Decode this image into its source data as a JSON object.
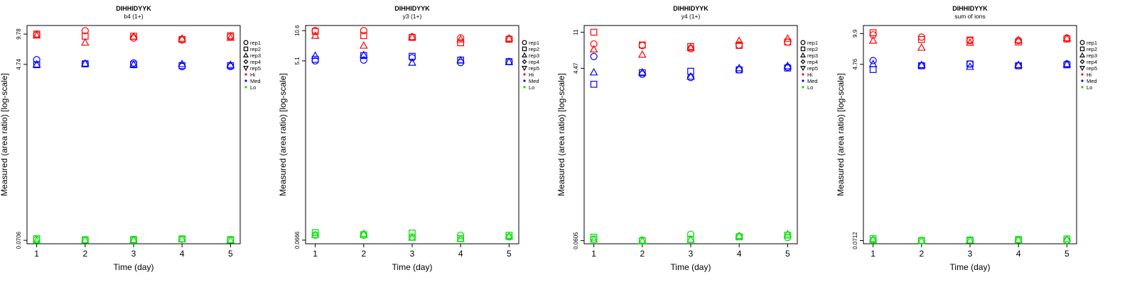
{
  "chart_data": [
    {
      "type": "scatter",
      "title": "DIHHIDYYK",
      "subtitle": "b4 (1+)",
      "xlabel": "Time (day)",
      "ylabel": "Measured (area ratio) [log-scale]",
      "log_y": true,
      "ylim": [
        0.065,
        12
      ],
      "yticks": [
        0.0706,
        4.74,
        9.78
      ],
      "ytick_labels": [
        "0.0706",
        "4.74",
        "9.78"
      ],
      "xlim": [
        0.8,
        5.2
      ],
      "xticks": [
        1,
        2,
        3,
        4,
        5
      ],
      "grid": false,
      "legend_position": "right",
      "legend": {
        "reps": [
          {
            "label": "rep1",
            "shape": "circle"
          },
          {
            "label": "rep2",
            "shape": "square"
          },
          {
            "label": "rep3",
            "shape": "triangle-up"
          },
          {
            "label": "rep4",
            "shape": "diamond"
          },
          {
            "label": "rep5",
            "shape": "triangle-down"
          }
        ],
        "levels": [
          {
            "label": "Hi",
            "color": "#ff0000"
          },
          {
            "label": "Med",
            "color": "#0000ff"
          },
          {
            "label": "Lo",
            "color": "#00dd00"
          }
        ]
      },
      "series": [
        {
          "level": "Hi",
          "rep": "rep1",
          "x": [
            1,
            2,
            3,
            4,
            5
          ],
          "y": [
            9.6,
            10.6,
            8.9,
            8.5,
            9.2
          ]
        },
        {
          "level": "Hi",
          "rep": "rep2",
          "x": [
            1,
            2,
            3,
            4,
            5
          ],
          "y": [
            9.8,
            9.3,
            9.3,
            8.6,
            9.4
          ]
        },
        {
          "level": "Hi",
          "rep": "rep3",
          "x": [
            1,
            2,
            3,
            4,
            5
          ],
          "y": [
            9.5,
            8.0,
            9.2,
            8.8,
            9.0
          ]
        },
        {
          "level": "Med",
          "rep": "rep1",
          "x": [
            1,
            2,
            3,
            4,
            5
          ],
          "y": [
            5.3,
            4.8,
            4.9,
            4.5,
            4.5
          ]
        },
        {
          "level": "Med",
          "rep": "rep2",
          "x": [
            1,
            2,
            3,
            4,
            5
          ],
          "y": [
            4.7,
            4.8,
            4.7,
            4.6,
            4.6
          ]
        },
        {
          "level": "Med",
          "rep": "rep3",
          "x": [
            1,
            2,
            3,
            4,
            5
          ],
          "y": [
            4.75,
            4.85,
            4.75,
            4.8,
            4.7
          ]
        },
        {
          "level": "Lo",
          "rep": "rep1",
          "x": [
            1,
            2,
            3,
            4,
            5
          ],
          "y": [
            0.0715,
            0.0712,
            0.0706,
            0.0725,
            0.0712
          ]
        },
        {
          "level": "Lo",
          "rep": "rep2",
          "x": [
            1,
            2,
            3,
            4,
            5
          ],
          "y": [
            0.0735,
            0.0716,
            0.0722,
            0.073,
            0.0718
          ]
        },
        {
          "level": "Lo",
          "rep": "rep3",
          "x": [
            1,
            2,
            3,
            4,
            5
          ],
          "y": [
            0.0704,
            0.0711,
            0.0713,
            0.0727,
            0.0709
          ]
        }
      ]
    },
    {
      "type": "scatter",
      "title": "DIHHIDYYK",
      "subtitle": "y3 (1+)",
      "xlabel": "Time (day)",
      "ylabel": "Measured (area ratio) [log-scale]",
      "log_y": true,
      "ylim": [
        0.061,
        12
      ],
      "yticks": [
        0.0666,
        5.1,
        10.6
      ],
      "ytick_labels": [
        "0.0666",
        "5.1",
        "10.6"
      ],
      "xlim": [
        0.8,
        5.2
      ],
      "xticks": [
        1,
        2,
        3,
        4,
        5
      ],
      "grid": false,
      "legend_position": "right",
      "legend": {
        "reps": [
          {
            "label": "rep1",
            "shape": "circle"
          },
          {
            "label": "rep2",
            "shape": "square"
          },
          {
            "label": "rep3",
            "shape": "triangle-up"
          },
          {
            "label": "rep4",
            "shape": "diamond"
          },
          {
            "label": "rep5",
            "shape": "triangle-down"
          }
        ],
        "levels": [
          {
            "label": "Hi",
            "color": "#ff0000"
          },
          {
            "label": "Med",
            "color": "#0000ff"
          },
          {
            "label": "Lo",
            "color": "#00dd00"
          }
        ]
      },
      "series": [
        {
          "level": "Hi",
          "rep": "rep1",
          "x": [
            1,
            2,
            3,
            4,
            5
          ],
          "y": [
            10.6,
            10.6,
            9.1,
            8.9,
            8.7
          ]
        },
        {
          "level": "Hi",
          "rep": "rep2",
          "x": [
            1,
            2,
            3,
            4,
            5
          ],
          "y": [
            10.4,
            9.4,
            9.0,
            7.9,
            8.6
          ]
        },
        {
          "level": "Hi",
          "rep": "rep3",
          "x": [
            1,
            2,
            3,
            4,
            5
          ],
          "y": [
            9.4,
            7.4,
            9.1,
            8.6,
            8.8
          ]
        },
        {
          "level": "Med",
          "rep": "rep1",
          "x": [
            1,
            2,
            3,
            4,
            5
          ],
          "y": [
            5.1,
            5.2,
            5.5,
            4.9,
            5.0
          ]
        },
        {
          "level": "Med",
          "rep": "rep2",
          "x": [
            1,
            2,
            3,
            4,
            5
          ],
          "y": [
            5.3,
            5.8,
            5.7,
            5.2,
            5.0
          ]
        },
        {
          "level": "Med",
          "rep": "rep3",
          "x": [
            1,
            2,
            3,
            4,
            5
          ],
          "y": [
            5.8,
            5.9,
            4.9,
            5.2,
            5.0
          ]
        },
        {
          "level": "Lo",
          "rep": "rep1",
          "x": [
            1,
            2,
            3,
            4,
            5
          ],
          "y": [
            0.075,
            0.075,
            0.072,
            0.075,
            0.072
          ]
        },
        {
          "level": "Lo",
          "rep": "rep2",
          "x": [
            1,
            2,
            3,
            4,
            5
          ],
          "y": [
            0.08,
            0.076,
            0.079,
            0.069,
            0.075
          ]
        },
        {
          "level": "Lo",
          "rep": "rep3",
          "x": [
            1,
            2,
            3,
            4,
            5
          ],
          "y": [
            0.076,
            0.078,
            0.071,
            0.069,
            0.073
          ]
        }
      ]
    },
    {
      "type": "scatter",
      "title": "DIHHIDYYK",
      "subtitle": "y4 (1+)",
      "xlabel": "Time (day)",
      "ylabel": "Measured (area ratio) [log-scale]",
      "log_y": true,
      "ylim": [
        0.056,
        13
      ],
      "yticks": [
        0.0605,
        4.47,
        11
      ],
      "ytick_labels": [
        "0.0605",
        "4.47",
        "11"
      ],
      "xlim": [
        0.8,
        5.2
      ],
      "xticks": [
        1,
        2,
        3,
        4,
        5
      ],
      "grid": false,
      "legend_position": "right",
      "legend": {
        "reps": [
          {
            "label": "rep1",
            "shape": "circle"
          },
          {
            "label": "rep2",
            "shape": "square"
          },
          {
            "label": "rep3",
            "shape": "triangle-up"
          },
          {
            "label": "rep4",
            "shape": "diamond"
          },
          {
            "label": "rep5",
            "shape": "triangle-down"
          }
        ],
        "levels": [
          {
            "label": "Hi",
            "color": "#ff0000"
          },
          {
            "label": "Med",
            "color": "#0000ff"
          },
          {
            "label": "Lo",
            "color": "#00dd00"
          }
        ]
      },
      "series": [
        {
          "level": "Hi",
          "rep": "rep1",
          "x": [
            1,
            2,
            3,
            4,
            5
          ],
          "y": [
            8.2,
            7.9,
            7.3,
            8.0,
            8.6
          ]
        },
        {
          "level": "Hi",
          "rep": "rep2",
          "x": [
            1,
            2,
            3,
            4,
            5
          ],
          "y": [
            11.0,
            8.0,
            7.7,
            7.9,
            8.6
          ]
        },
        {
          "level": "Hi",
          "rep": "rep3",
          "x": [
            1,
            2,
            3,
            4,
            5
          ],
          "y": [
            7.2,
            6.3,
            7.5,
            8.9,
            9.4
          ]
        },
        {
          "level": "Med",
          "rep": "rep1",
          "x": [
            1,
            2,
            3,
            4,
            5
          ],
          "y": [
            6.0,
            3.85,
            3.55,
            4.3,
            4.6
          ]
        },
        {
          "level": "Med",
          "rep": "rep2",
          "x": [
            1,
            2,
            3,
            4,
            5
          ],
          "y": [
            3.0,
            4.0,
            4.15,
            4.3,
            4.5
          ]
        },
        {
          "level": "Med",
          "rep": "rep3",
          "x": [
            1,
            2,
            3,
            4,
            5
          ],
          "y": [
            4.05,
            4.05,
            3.65,
            4.5,
            4.75
          ]
        },
        {
          "level": "Lo",
          "rep": "rep1",
          "x": [
            1,
            2,
            3,
            4,
            5
          ],
          "y": [
            0.063,
            0.0615,
            0.071,
            0.067,
            0.0655
          ]
        },
        {
          "level": "Lo",
          "rep": "rep2",
          "x": [
            1,
            2,
            3,
            4,
            5
          ],
          "y": [
            0.066,
            0.06,
            0.0625,
            0.0665,
            0.0695
          ]
        },
        {
          "level": "Lo",
          "rep": "rep3",
          "x": [
            1,
            2,
            3,
            4,
            5
          ],
          "y": [
            0.0625,
            0.0605,
            0.0625,
            0.0685,
            0.0715
          ]
        }
      ]
    },
    {
      "type": "scatter",
      "title": "DIHHIDYYK",
      "subtitle": "sum of ions",
      "xlabel": "Time (day)",
      "ylabel": "Measured (area ratio) [log-scale]",
      "log_y": true,
      "ylim": [
        0.066,
        12
      ],
      "yticks": [
        0.0712,
        4.76,
        9.9
      ],
      "ytick_labels": [
        "0.0712",
        "4.76",
        "9.9"
      ],
      "xlim": [
        0.8,
        5.2
      ],
      "xticks": [
        1,
        2,
        3,
        4,
        5
      ],
      "grid": false,
      "legend_position": "right",
      "legend": {
        "reps": [
          {
            "label": "rep1",
            "shape": "circle"
          },
          {
            "label": "rep2",
            "shape": "square"
          },
          {
            "label": "rep3",
            "shape": "triangle-up"
          },
          {
            "label": "rep4",
            "shape": "diamond"
          },
          {
            "label": "rep5",
            "shape": "triangle-down"
          }
        ],
        "levels": [
          {
            "label": "Hi",
            "color": "#ff0000"
          },
          {
            "label": "Med",
            "color": "#0000ff"
          },
          {
            "label": "Lo",
            "color": "#00dd00"
          }
        ]
      },
      "series": [
        {
          "level": "Hi",
          "rep": "rep1",
          "x": [
            1,
            2,
            3,
            4,
            5
          ],
          "y": [
            9.6,
            9.1,
            8.4,
            8.4,
            8.9
          ]
        },
        {
          "level": "Hi",
          "rep": "rep2",
          "x": [
            1,
            2,
            3,
            4,
            5
          ],
          "y": [
            10.1,
            8.6,
            8.5,
            8.1,
            8.7
          ]
        },
        {
          "level": "Hi",
          "rep": "rep3",
          "x": [
            1,
            2,
            3,
            4,
            5
          ],
          "y": [
            8.4,
            7.1,
            8.0,
            8.5,
            8.9
          ]
        },
        {
          "level": "Med",
          "rep": "rep1",
          "x": [
            1,
            2,
            3,
            4,
            5
          ],
          "y": [
            5.2,
            4.6,
            4.8,
            4.6,
            4.8
          ]
        },
        {
          "level": "Med",
          "rep": "rep2",
          "x": [
            1,
            2,
            3,
            4,
            5
          ],
          "y": [
            4.2,
            4.6,
            4.8,
            4.6,
            4.7
          ]
        },
        {
          "level": "Med",
          "rep": "rep3",
          "x": [
            1,
            2,
            3,
            4,
            5
          ],
          "y": [
            4.8,
            4.7,
            4.5,
            4.7,
            4.8
          ]
        },
        {
          "level": "Lo",
          "rep": "rep1",
          "x": [
            1,
            2,
            3,
            4,
            5
          ],
          "y": [
            0.0718,
            0.0712,
            0.0718,
            0.0722,
            0.0716
          ]
        },
        {
          "level": "Lo",
          "rep": "rep2",
          "x": [
            1,
            2,
            3,
            4,
            5
          ],
          "y": [
            0.0745,
            0.0712,
            0.0722,
            0.073,
            0.074
          ]
        },
        {
          "level": "Lo",
          "rep": "rep3",
          "x": [
            1,
            2,
            3,
            4,
            5
          ],
          "y": [
            0.0728,
            0.0714,
            0.0718,
            0.0728,
            0.0736
          ]
        }
      ]
    }
  ]
}
